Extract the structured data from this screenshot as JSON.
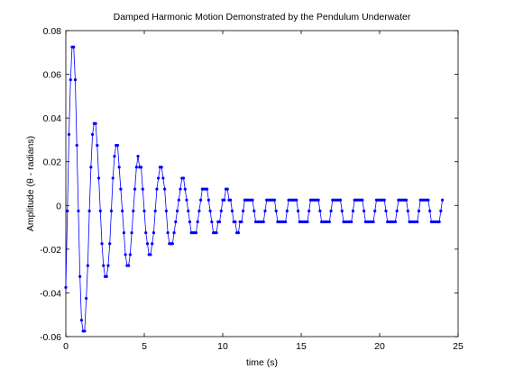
{
  "chart_data": {
    "type": "line",
    "title": "Damped Harmonic Motion Demonstrated by the Pendulum Underwater",
    "xlabel": "time (s)",
    "ylabel": "Amplitude (θ - radians)",
    "xlim": [
      0,
      25
    ],
    "xticks": [
      0,
      5,
      10,
      15,
      20,
      25
    ],
    "ylim": [
      -0.06,
      0.08
    ],
    "yticks": [
      -0.06,
      -0.04,
      -0.02,
      0,
      0.02,
      0.04,
      0.06,
      0.08
    ],
    "grid": false,
    "series": [
      {
        "color": "#0000ff",
        "x": [
          0,
          0.1,
          0.2,
          0.3,
          0.4,
          0.5,
          0.6,
          0.7,
          0.8,
          0.9,
          1,
          1.1,
          1.2,
          1.3,
          1.4,
          1.5,
          1.6,
          1.7,
          1.8,
          1.9,
          2,
          2.1,
          2.2,
          2.3,
          2.4,
          2.5,
          2.6,
          2.7,
          2.8,
          2.9,
          3,
          3.1,
          3.2,
          3.3,
          3.4,
          3.5,
          3.6,
          3.7,
          3.8,
          3.9,
          4,
          4.1,
          4.2,
          4.3,
          4.4,
          4.5,
          4.6,
          4.7,
          4.8,
          4.9,
          5,
          5.1,
          5.2,
          5.3,
          5.4,
          5.5,
          5.6,
          5.7,
          5.8,
          5.9,
          6,
          6.1,
          6.2,
          6.3,
          6.4,
          6.5,
          6.6,
          6.7,
          6.8,
          6.9,
          7,
          7.1,
          7.2,
          7.3,
          7.4,
          7.5,
          7.6,
          7.7,
          7.8,
          7.9,
          8,
          8.1,
          8.2,
          8.3,
          8.4,
          8.5,
          8.6,
          8.7,
          8.8,
          8.9,
          9,
          9.1,
          9.2,
          9.3,
          9.4,
          9.5,
          9.6,
          9.7,
          9.8,
          9.9,
          10,
          10.1,
          10.2,
          10.3,
          10.4,
          10.5,
          10.6,
          10.7,
          10.8,
          10.9,
          11,
          11.1,
          11.2,
          11.3,
          11.4,
          11.5,
          11.6,
          11.7,
          11.8,
          11.9,
          12,
          12.1,
          12.2,
          12.3,
          12.4,
          12.5,
          12.6,
          12.7,
          12.8,
          12.9,
          13,
          13.1,
          13.2,
          13.3,
          13.4,
          13.5,
          13.6,
          13.7,
          13.8,
          13.9,
          14,
          14.1,
          14.2,
          14.3,
          14.4,
          14.5,
          14.6,
          14.7,
          14.8,
          14.9,
          15,
          15.1,
          15.2,
          15.3,
          15.4,
          15.5,
          15.6,
          15.7,
          15.8,
          15.9,
          16,
          16.1,
          16.2,
          16.3,
          16.4,
          16.5,
          16.6,
          16.7,
          16.8,
          16.9,
          17,
          17.1,
          17.2,
          17.3,
          17.4,
          17.5,
          17.6,
          17.7,
          17.8,
          17.9,
          18,
          18.1,
          18.2,
          18.3,
          18.4,
          18.5,
          18.6,
          18.7,
          18.8,
          18.9,
          19,
          19.1,
          19.2,
          19.3,
          19.4,
          19.5,
          19.6,
          19.7,
          19.8,
          19.9,
          20,
          20.1,
          20.2,
          20.3,
          20.4,
          20.5,
          20.6,
          20.7,
          20.8,
          20.9,
          21,
          21.1,
          21.2,
          21.3,
          21.4,
          21.5,
          21.6,
          21.7,
          21.8,
          21.9,
          22,
          22.1,
          22.2,
          22.3,
          22.4,
          22.5,
          22.6,
          22.7,
          22.8,
          22.9,
          23,
          23.1,
          23.2,
          23.3,
          23.4,
          23.5,
          23.6,
          23.7,
          23.8,
          23.9,
          24
        ],
        "values": [
          -0.0375,
          -0.0025,
          0.0325,
          0.0575,
          0.0725,
          0.0725,
          0.0575,
          0.0275,
          -0.0025,
          -0.0325,
          -0.0525,
          -0.0575,
          -0.0575,
          -0.0425,
          -0.0275,
          -0.0025,
          0.0175,
          0.0325,
          0.0375,
          0.0375,
          0.0275,
          0.0125,
          -0.0025,
          -0.0175,
          -0.0275,
          -0.0325,
          -0.0325,
          -0.0275,
          -0.0175,
          -0.0025,
          0.0125,
          0.0225,
          0.0275,
          0.0275,
          0.0175,
          0.0075,
          -0.0025,
          -0.0125,
          -0.0225,
          -0.0275,
          -0.0275,
          -0.0225,
          -0.0125,
          -0.0025,
          0.0075,
          0.0175,
          0.0225,
          0.0175,
          0.0175,
          0.0075,
          -0.0025,
          -0.0125,
          -0.0175,
          -0.0225,
          -0.0225,
          -0.0175,
          -0.0125,
          -0.0025,
          0.0075,
          0.0125,
          0.0175,
          0.0175,
          0.0125,
          0.0075,
          -0.0025,
          -0.0125,
          -0.0175,
          -0.0175,
          -0.0175,
          -0.0125,
          -0.0075,
          -0.0025,
          0.0025,
          0.0075,
          0.0125,
          0.0125,
          0.0075,
          0.0025,
          -0.0025,
          -0.0075,
          -0.0125,
          -0.0125,
          -0.0125,
          -0.0125,
          -0.0075,
          -0.0025,
          0.0025,
          0.0075,
          0.0075,
          0.0075,
          0.0075,
          0.0025,
          -0.0025,
          -0.0075,
          -0.0125,
          -0.0125,
          -0.0125,
          -0.0075,
          -0.0075,
          -0.0025,
          0.0025,
          0.0025,
          0.0075,
          0.0075,
          0.0025,
          0.0025,
          -0.0025,
          -0.0075,
          -0.0075,
          -0.0125,
          -0.0125,
          -0.0075,
          -0.0075,
          -0.0025,
          0.0025,
          0.0025,
          0.0025,
          0.0025,
          0.0025,
          0.0025,
          -0.0025,
          -0.0075,
          -0.0075,
          -0.0075,
          -0.0075,
          -0.0075,
          -0.0075,
          -0.0025,
          0.0025,
          0.0025,
          0.0025,
          0.0025,
          0.0025,
          0.0025,
          -0.0025,
          -0.0075,
          -0.0075,
          -0.0075,
          -0.0075,
          -0.0075,
          -0.0075,
          -0.0025,
          0.0025,
          0.0025,
          0.0025,
          0.0025,
          0.0025,
          0.0025,
          -0.0025,
          -0.0075,
          -0.0075,
          -0.0075,
          -0.0075,
          -0.0075,
          -0.0075,
          -0.0025,
          0.0025,
          0.0025,
          0.0025,
          0.0025,
          0.0025,
          0.0025,
          -0.0025,
          -0.0075,
          -0.0075,
          -0.0075,
          -0.0075,
          -0.0075,
          -0.0075,
          -0.0025,
          0.0025,
          0.0025,
          0.0025,
          0.0025,
          0.0025,
          0.0025,
          -0.0025,
          -0.0075,
          -0.0075,
          -0.0075,
          -0.0075,
          -0.0075,
          -0.0075,
          -0.0025,
          0.0025,
          0.0025,
          0.0025,
          0.0025,
          0.0025,
          0.0025,
          -0.0025,
          -0.0075,
          -0.0075,
          -0.0075,
          -0.0075,
          -0.0075,
          -0.0075,
          -0.0025,
          0.0025,
          0.0025,
          0.0025,
          0.0025,
          0.0025,
          0.0025,
          -0.0025,
          -0.0075,
          -0.0075,
          -0.0075,
          -0.0075,
          -0.0075,
          -0.0075,
          -0.0025,
          0.0025,
          0.0025,
          0.0025,
          0.0025,
          0.0025,
          0.0025,
          -0.0025,
          -0.0075,
          -0.0075,
          -0.0075,
          -0.0075,
          -0.0075,
          -0.0075,
          -0.0025,
          0.0025,
          0.0025,
          0.0025,
          0.0025,
          0.0025,
          0.0025,
          -0.0025,
          -0.0075,
          -0.0075,
          -0.0075,
          -0.0075,
          -0.0075,
          -0.0075,
          -0.0025,
          0.0025
        ]
      }
    ]
  }
}
